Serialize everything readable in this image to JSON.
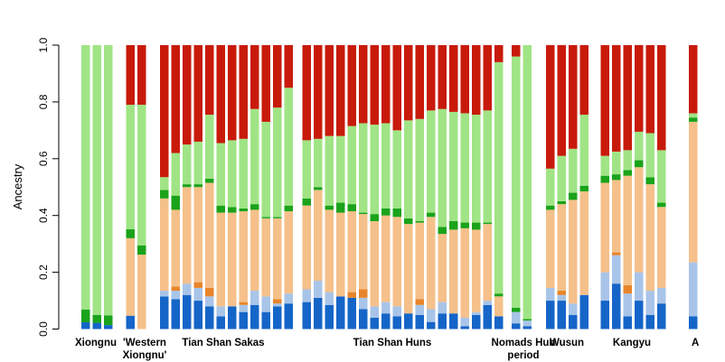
{
  "chart_data": {
    "type": "bar",
    "stacked": true,
    "ylabel": "Ancestry",
    "ylim": [
      0,
      1
    ],
    "yticks": [
      "0.0",
      "0.2",
      "0.4",
      "0.6",
      "0.8",
      "1.0"
    ],
    "grid": false,
    "legend": "none",
    "component_colors": [
      "#1565c8",
      "#a8c4e8",
      "#e8852a",
      "#f5c08a",
      "#1aa31a",
      "#a0e486",
      "#c81a0a"
    ],
    "groups": [
      {
        "label": "Xiongnu",
        "bars": [
          [
            0.024,
            0.0,
            0.0,
            0.0,
            0.045,
            0.931,
            0.0
          ],
          [
            0.022,
            0.0,
            0.0,
            0.0,
            0.028,
            0.95,
            0.0
          ],
          [
            0.014,
            0.0,
            0.0,
            0.0,
            0.034,
            0.952,
            0.0
          ]
        ]
      },
      {
        "label": "'Western Xiongnu'",
        "bars": [
          [
            0.047,
            0.0,
            0.0,
            0.273,
            0.032,
            0.438,
            0.21
          ],
          [
            0.0,
            0.0,
            0.0,
            0.262,
            0.033,
            0.495,
            0.21
          ]
        ]
      },
      {
        "label": "Tian Shan Sakas",
        "bars": [
          [
            0.115,
            0.02,
            0.0,
            0.325,
            0.03,
            0.045,
            0.465
          ],
          [
            0.105,
            0.03,
            0.015,
            0.27,
            0.05,
            0.15,
            0.38
          ],
          [
            0.12,
            0.04,
            0.0,
            0.34,
            0.01,
            0.14,
            0.35
          ],
          [
            0.1,
            0.045,
            0.02,
            0.335,
            0.01,
            0.15,
            0.34
          ],
          [
            0.08,
            0.035,
            0.03,
            0.37,
            0.015,
            0.225,
            0.245
          ],
          [
            0.045,
            0.035,
            0.0,
            0.33,
            0.025,
            0.22,
            0.345
          ],
          [
            0.08,
            0.0,
            0.0,
            0.33,
            0.02,
            0.235,
            0.335
          ],
          [
            0.06,
            0.025,
            0.01,
            0.32,
            0.01,
            0.245,
            0.33
          ],
          [
            0.085,
            0.05,
            0.0,
            0.285,
            0.02,
            0.335,
            0.225
          ],
          [
            0.06,
            0.055,
            0.0,
            0.275,
            0.005,
            0.335,
            0.27
          ],
          [
            0.08,
            0.01,
            0.015,
            0.285,
            0.005,
            0.385,
            0.22
          ],
          [
            0.09,
            0.035,
            0.0,
            0.29,
            0.02,
            0.415,
            0.15
          ]
        ]
      },
      {
        "label": "Tian Shan Huns",
        "bars": [
          [
            0.095,
            0.045,
            0.0,
            0.295,
            0.025,
            0.205,
            0.335
          ],
          [
            0.11,
            0.06,
            0.0,
            0.32,
            0.01,
            0.17,
            0.33
          ],
          [
            0.085,
            0.045,
            0.0,
            0.29,
            0.015,
            0.245,
            0.32
          ],
          [
            0.115,
            0.0,
            0.0,
            0.295,
            0.035,
            0.235,
            0.32
          ],
          [
            0.11,
            0.0,
            0.02,
            0.285,
            0.025,
            0.275,
            0.285
          ],
          [
            0.07,
            0.04,
            0.03,
            0.265,
            0.005,
            0.315,
            0.275
          ],
          [
            0.04,
            0.04,
            0.0,
            0.3,
            0.025,
            0.315,
            0.28
          ],
          [
            0.055,
            0.04,
            0.0,
            0.305,
            0.025,
            0.3,
            0.275
          ],
          [
            0.045,
            0.035,
            0.0,
            0.315,
            0.03,
            0.275,
            0.3
          ],
          [
            0.055,
            0.0,
            0.0,
            0.315,
            0.02,
            0.345,
            0.265
          ],
          [
            0.05,
            0.035,
            0.02,
            0.27,
            0.005,
            0.36,
            0.26
          ],
          [
            0.025,
            0.045,
            0.0,
            0.325,
            0.015,
            0.36,
            0.23
          ],
          [
            0.055,
            0.04,
            0.0,
            0.24,
            0.025,
            0.415,
            0.225
          ],
          [
            0.055,
            0.0,
            0.0,
            0.295,
            0.03,
            0.385,
            0.235
          ],
          [
            0.01,
            0.03,
            0.0,
            0.315,
            0.02,
            0.385,
            0.24
          ],
          [
            0.05,
            0.01,
            0.0,
            0.29,
            0.025,
            0.38,
            0.245
          ],
          [
            0.085,
            0.015,
            0.0,
            0.27,
            0.005,
            0.395,
            0.23
          ],
          [
            0.045,
            0.0,
            0.0,
            0.07,
            0.01,
            0.815,
            0.06
          ]
        ]
      },
      {
        "label": "Nomads Hun period",
        "bars": [
          [
            0.02,
            0.04,
            0.0,
            0.0,
            0.015,
            0.885,
            0.04
          ],
          [
            0.01,
            0.02,
            0.0,
            0.0,
            0.005,
            0.965,
            0.0
          ]
        ]
      },
      {
        "label": "Wusun",
        "bars": [
          [
            0.1,
            0.045,
            0.0,
            0.275,
            0.015,
            0.13,
            0.435
          ],
          [
            0.1,
            0.02,
            0.015,
            0.305,
            0.01,
            0.16,
            0.39
          ],
          [
            0.05,
            0.04,
            0.0,
            0.365,
            0.025,
            0.155,
            0.365
          ],
          [
            0.12,
            0.0,
            0.0,
            0.365,
            0.02,
            0.25,
            0.245
          ]
        ]
      },
      {
        "label": "Kangyu",
        "bars": [
          [
            0.1,
            0.1,
            0.0,
            0.315,
            0.025,
            0.07,
            0.39
          ],
          [
            0.16,
            0.1,
            0.01,
            0.255,
            0.02,
            0.08,
            0.375
          ],
          [
            0.045,
            0.08,
            0.03,
            0.385,
            0.02,
            0.07,
            0.37
          ],
          [
            0.1,
            0.1,
            0.0,
            0.37,
            0.025,
            0.1,
            0.305
          ],
          [
            0.05,
            0.085,
            0.0,
            0.375,
            0.025,
            0.155,
            0.31
          ],
          [
            0.09,
            0.055,
            0.0,
            0.285,
            0.015,
            0.185,
            0.37
          ]
        ]
      },
      {
        "label": "A",
        "bars": [
          [
            0.045,
            0.19,
            0.0,
            0.495,
            0.015,
            0.015,
            0.24
          ]
        ]
      }
    ]
  }
}
